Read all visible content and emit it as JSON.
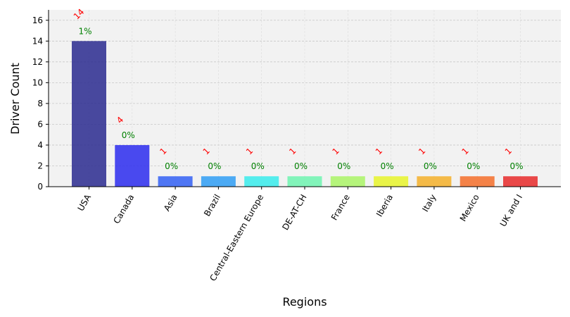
{
  "chart_data": {
    "type": "bar",
    "title": "",
    "xlabel": "Regions",
    "ylabel": "Driver Count",
    "categories": [
      "USA",
      "Canada",
      "Asia",
      "Brazil",
      "Central-Eastern Europe",
      "DE-AT-CH",
      "France",
      "Iberia",
      "Italy",
      "Mexico",
      "UK and I"
    ],
    "values": [
      14,
      4,
      1,
      1,
      1,
      1,
      1,
      1,
      1,
      1,
      1
    ],
    "value_labels": [
      "14",
      "4",
      "1",
      "1",
      "1",
      "1",
      "1",
      "1",
      "1",
      "1",
      "1"
    ],
    "percent_labels": [
      "1%",
      "0%",
      "0%",
      "0%",
      "0%",
      "0%",
      "0%",
      "0%",
      "0%",
      "0%",
      "0%"
    ],
    "colors": [
      "#2a2a8f",
      "#2b2bef",
      "#3360f5",
      "#2f9df5",
      "#38ecec",
      "#6ef5b0",
      "#aaf566",
      "#e8f52a",
      "#f5b02a",
      "#f56e2a",
      "#e82a2a"
    ],
    "ylim": [
      0,
      17
    ],
    "yticks": [
      0,
      2,
      4,
      6,
      8,
      10,
      12,
      14,
      16
    ],
    "grid": true,
    "legend": false
  }
}
